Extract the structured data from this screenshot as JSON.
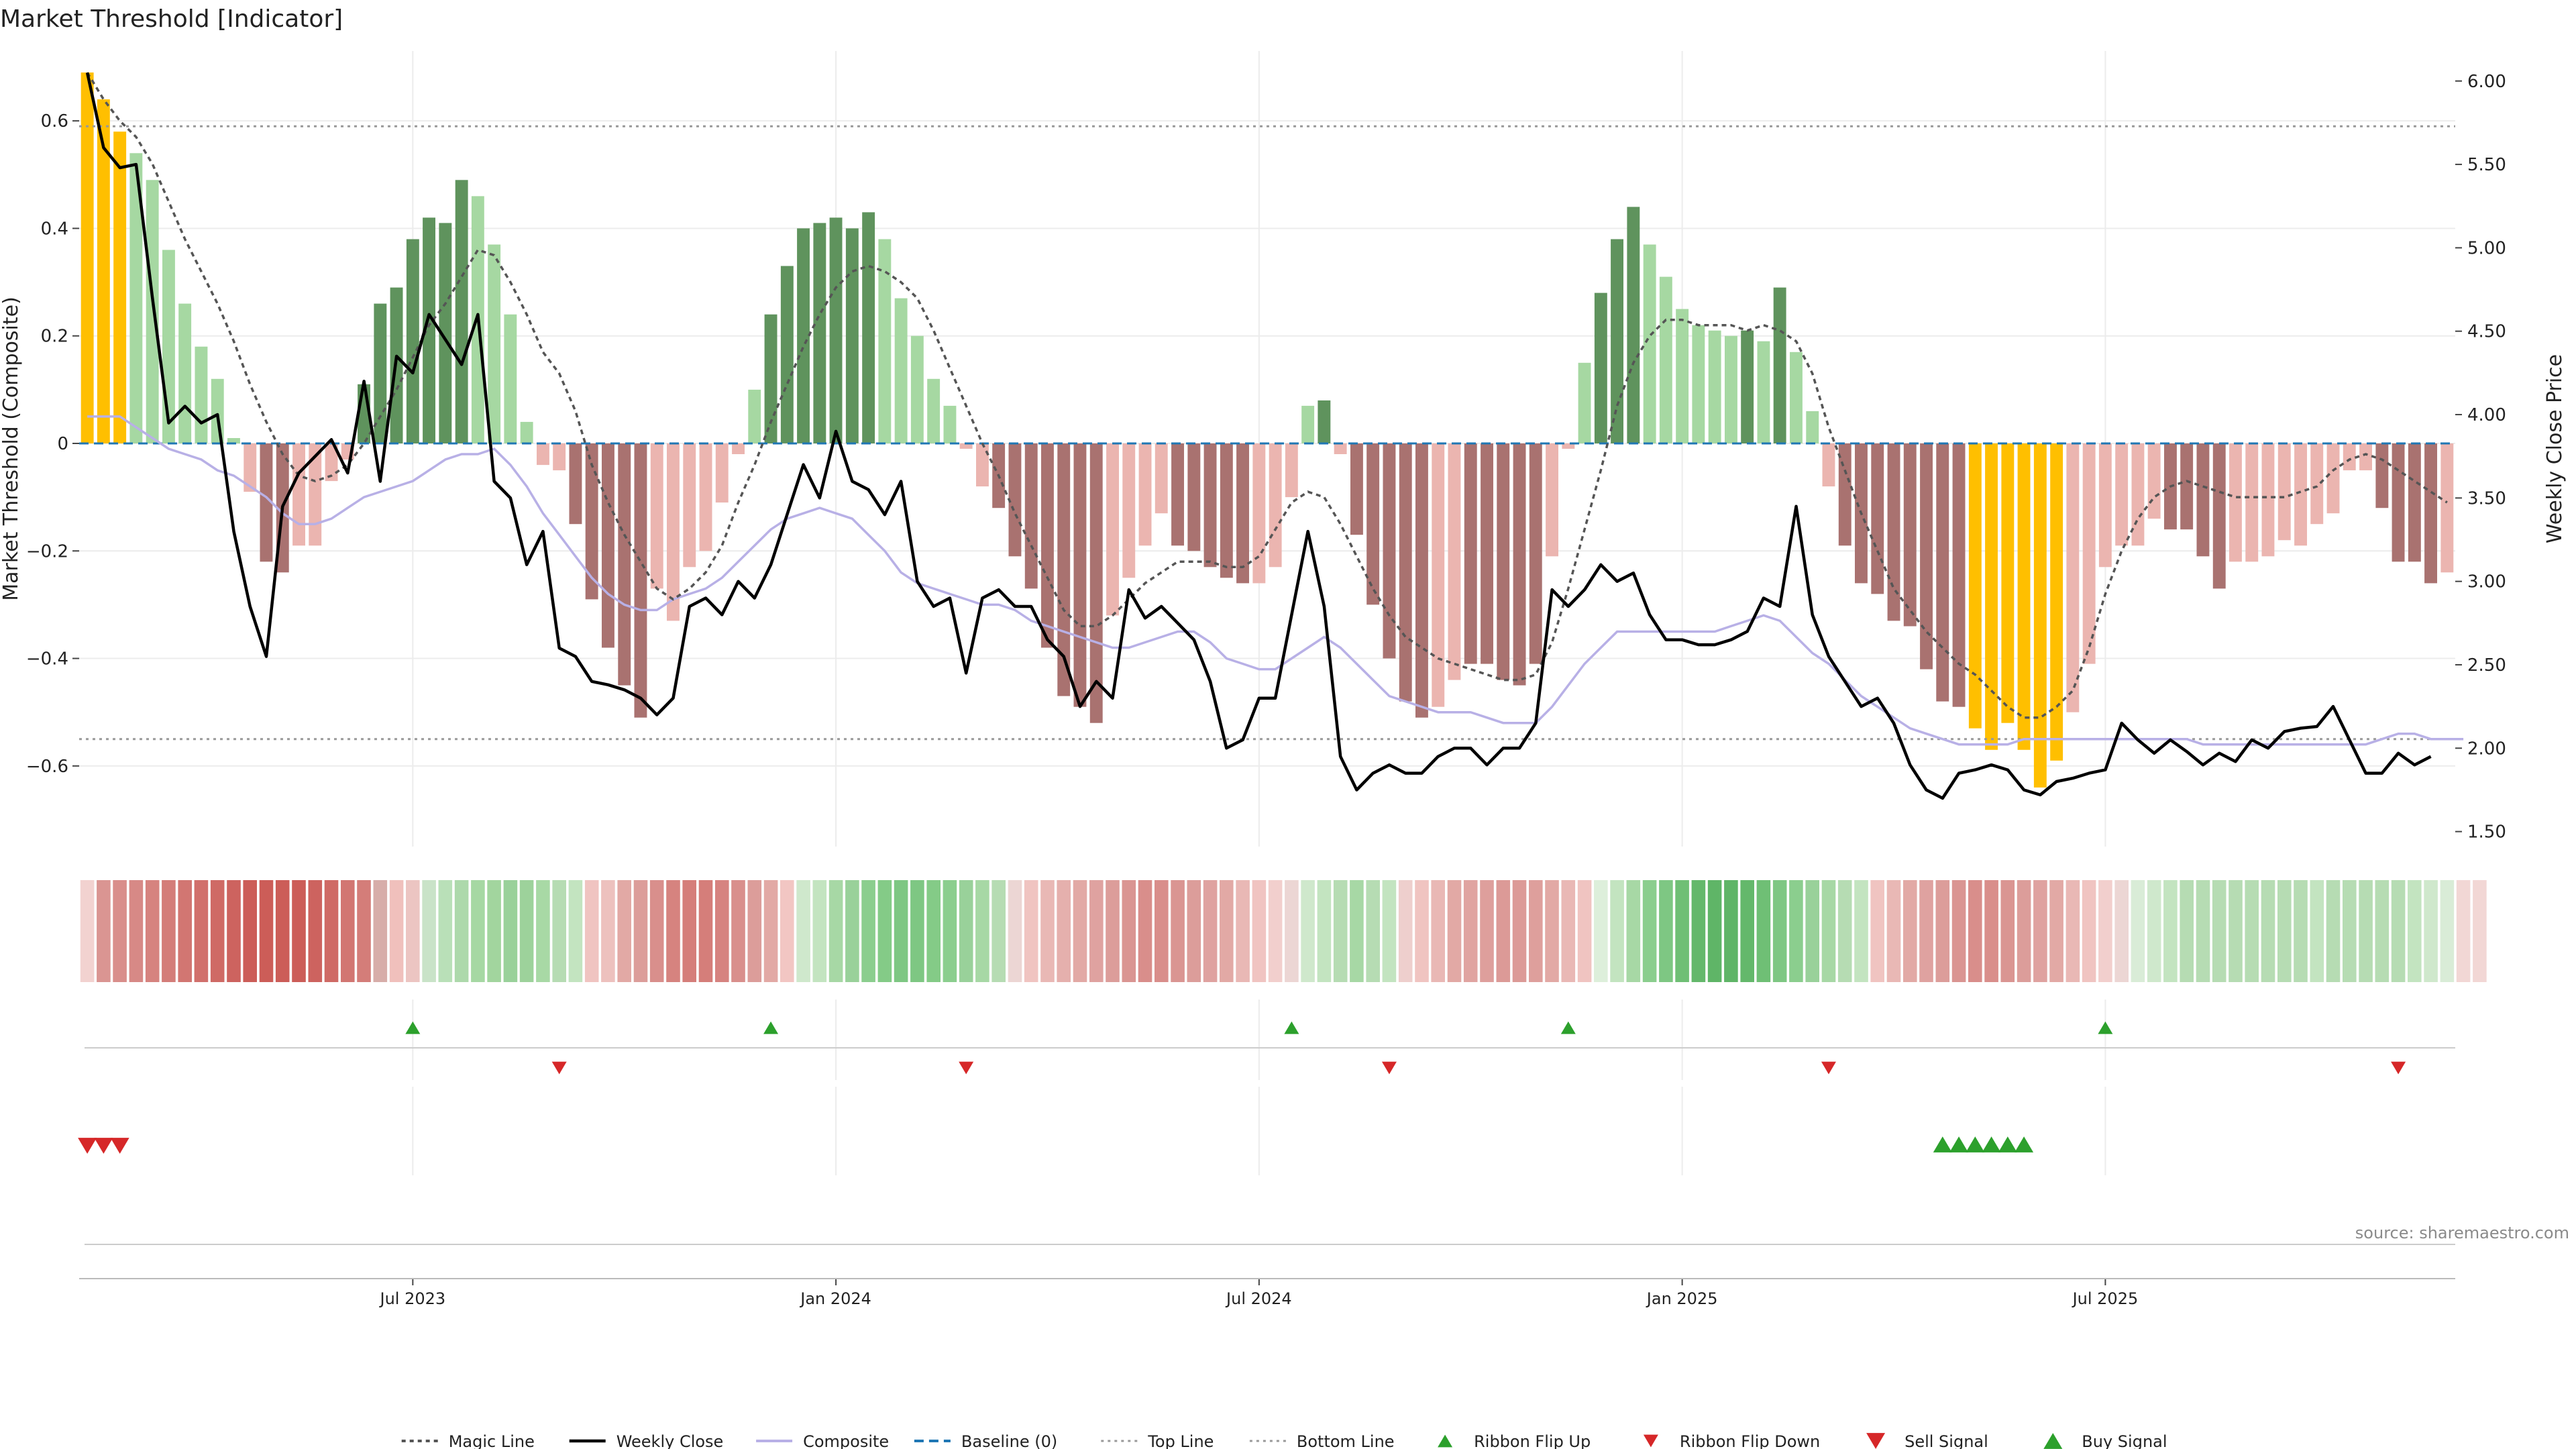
{
  "chart_data": {
    "type": "bar",
    "title": "Market Threshold [Indicator]",
    "ylabel_left": "Market Threshold (Composite)",
    "ylabel_right": "Weekly Close Price",
    "source": "source: sharemaestro.com",
    "ylim_left": [
      -0.75,
      0.73
    ],
    "ylim_right": [
      1.41,
      6.18
    ],
    "yticks_left": [
      {
        "v": 0.6,
        "label": "0.6"
      },
      {
        "v": 0.4,
        "label": "0.4"
      },
      {
        "v": 0.2,
        "label": "0.2"
      },
      {
        "v": 0,
        "label": "0"
      },
      {
        "v": -0.2,
        "label": "−0.2"
      },
      {
        "v": -0.4,
        "label": "−0.4"
      },
      {
        "v": -0.6,
        "label": "−0.6"
      }
    ],
    "yticks_right": [
      "6.00",
      "5.50",
      "5.00",
      "4.50",
      "4.00",
      "3.50",
      "3.00",
      "2.50",
      "2.00",
      "1.50"
    ],
    "xticks": [
      {
        "i": 20,
        "label": "Jul 2023"
      },
      {
        "i": 46,
        "label": "Jan 2024"
      },
      {
        "i": 72,
        "label": "Jul 2024"
      },
      {
        "i": 98,
        "label": "Jan 2025"
      },
      {
        "i": 124,
        "label": "Jul 2025"
      }
    ],
    "top_line": 0.59,
    "bottom_line": -0.55,
    "composite": [
      0.69,
      0.64,
      0.58,
      0.54,
      0.49,
      0.36,
      0.26,
      0.18,
      0.12,
      0.01,
      -0.09,
      -0.22,
      -0.24,
      -0.19,
      -0.19,
      -0.07,
      -0.03,
      0.11,
      0.26,
      0.29,
      0.38,
      0.42,
      0.41,
      0.49,
      0.46,
      0.37,
      0.24,
      0.04,
      -0.04,
      -0.05,
      -0.15,
      -0.29,
      -0.38,
      -0.45,
      -0.51,
      -0.27,
      -0.33,
      -0.23,
      -0.2,
      -0.11,
      -0.02,
      0.1,
      0.24,
      0.33,
      0.4,
      0.41,
      0.42,
      0.4,
      0.43,
      0.38,
      0.27,
      0.2,
      0.12,
      0.07,
      -0.01,
      -0.08,
      -0.12,
      -0.21,
      -0.27,
      -0.38,
      -0.47,
      -0.49,
      -0.52,
      -0.32,
      -0.25,
      -0.19,
      -0.13,
      -0.19,
      -0.2,
      -0.23,
      -0.25,
      -0.26,
      -0.26,
      -0.23,
      -0.1,
      0.07,
      0.08,
      -0.02,
      -0.17,
      -0.3,
      -0.4,
      -0.48,
      -0.51,
      -0.49,
      -0.44,
      -0.41,
      -0.41,
      -0.44,
      -0.45,
      -0.41,
      -0.21,
      -0.01,
      0.15,
      0.28,
      0.38,
      0.44,
      0.37,
      0.31,
      0.25,
      0.22,
      0.21,
      0.2,
      0.21,
      0.19,
      0.29,
      0.17,
      0.06,
      -0.08,
      -0.19,
      -0.26,
      -0.28,
      -0.33,
      -0.34,
      -0.42,
      -0.48,
      -0.49,
      -0.53,
      -0.57,
      -0.52,
      -0.57,
      -0.64,
      -0.59,
      -0.5,
      -0.41,
      -0.23,
      -0.19,
      -0.19,
      -0.14,
      -0.16,
      -0.16,
      -0.21,
      -0.27,
      -0.22,
      -0.22,
      -0.21,
      -0.18,
      -0.19,
      -0.15,
      -0.13,
      -0.05,
      -0.05,
      -0.12,
      -0.22,
      -0.22,
      -0.26,
      -0.24
    ],
    "bar_colors": [
      "#ffbf00",
      "#ffbf00",
      "#ffbf00",
      "#a6d8a2",
      "#a6d8a2",
      "#a6d8a2",
      "#a6d8a2",
      "#a6d8a2",
      "#a6d8a2",
      "#a6d8a2",
      "#ebb5b0",
      "#a97270",
      "#a97270",
      "#ebb5b0",
      "#ebb5b0",
      "#ebb5b0",
      "#ebb5b0",
      "#5f935d",
      "#5f935d",
      "#5f935d",
      "#5f935d",
      "#5f935d",
      "#5f935d",
      "#5f935d",
      "#a6d8a2",
      "#a6d8a2",
      "#a6d8a2",
      "#a6d8a2",
      "#ebb5b0",
      "#ebb5b0",
      "#a97270",
      "#a97270",
      "#a97270",
      "#a97270",
      "#a97270",
      "#ebb5b0",
      "#ebb5b0",
      "#ebb5b0",
      "#ebb5b0",
      "#ebb5b0",
      "#ebb5b0",
      "#a6d8a2",
      "#5f935d",
      "#5f935d",
      "#5f935d",
      "#5f935d",
      "#5f935d",
      "#5f935d",
      "#5f935d",
      "#a6d8a2",
      "#a6d8a2",
      "#a6d8a2",
      "#a6d8a2",
      "#a6d8a2",
      "#ebb5b0",
      "#ebb5b0",
      "#a97270",
      "#a97270",
      "#a97270",
      "#a97270",
      "#a97270",
      "#a97270",
      "#a97270",
      "#ebb5b0",
      "#ebb5b0",
      "#ebb5b0",
      "#ebb5b0",
      "#a97270",
      "#a97270",
      "#a97270",
      "#a97270",
      "#a97270",
      "#ebb5b0",
      "#ebb5b0",
      "#ebb5b0",
      "#a6d8a2",
      "#5f935d",
      "#ebb5b0",
      "#a97270",
      "#a97270",
      "#a97270",
      "#a97270",
      "#a97270",
      "#ebb5b0",
      "#ebb5b0",
      "#a97270",
      "#a97270",
      "#a97270",
      "#a97270",
      "#a97270",
      "#ebb5b0",
      "#ebb5b0",
      "#a6d8a2",
      "#5f935d",
      "#5f935d",
      "#5f935d",
      "#a6d8a2",
      "#a6d8a2",
      "#a6d8a2",
      "#a6d8a2",
      "#a6d8a2",
      "#a6d8a2",
      "#5f935d",
      "#a6d8a2",
      "#5f935d",
      "#a6d8a2",
      "#a6d8a2",
      "#ebb5b0",
      "#a97270",
      "#a97270",
      "#a97270",
      "#a97270",
      "#a97270",
      "#a97270",
      "#a97270",
      "#a97270",
      "#ffbf00",
      "#ffbf00",
      "#ffbf00",
      "#ffbf00",
      "#ffbf00",
      "#ffbf00",
      "#ebb5b0",
      "#ebb5b0",
      "#ebb5b0",
      "#ebb5b0",
      "#ebb5b0",
      "#ebb5b0",
      "#a97270",
      "#a97270",
      "#a97270",
      "#a97270",
      "#ebb5b0",
      "#ebb5b0",
      "#ebb5b0",
      "#ebb5b0",
      "#ebb5b0",
      "#ebb5b0",
      "#ebb5b0",
      "#ebb5b0",
      "#ebb5b0",
      "#a97270",
      "#a97270",
      "#a97270",
      "#a97270",
      "#ebb5b0"
    ],
    "magic_line": [
      0.69,
      0.64,
      0.6,
      0.57,
      0.52,
      0.45,
      0.38,
      0.32,
      0.26,
      0.19,
      0.11,
      0.04,
      -0.02,
      -0.06,
      -0.07,
      -0.06,
      -0.04,
      0.0,
      0.05,
      0.1,
      0.16,
      0.22,
      0.26,
      0.31,
      0.36,
      0.35,
      0.3,
      0.24,
      0.17,
      0.13,
      0.06,
      -0.04,
      -0.11,
      -0.17,
      -0.22,
      -0.27,
      -0.29,
      -0.27,
      -0.24,
      -0.19,
      -0.11,
      -0.04,
      0.04,
      0.11,
      0.18,
      0.24,
      0.29,
      0.32,
      0.33,
      0.32,
      0.3,
      0.27,
      0.21,
      0.14,
      0.07,
      0.0,
      -0.06,
      -0.13,
      -0.19,
      -0.25,
      -0.31,
      -0.34,
      -0.34,
      -0.32,
      -0.29,
      -0.26,
      -0.24,
      -0.22,
      -0.22,
      -0.22,
      -0.23,
      -0.23,
      -0.21,
      -0.16,
      -0.11,
      -0.09,
      -0.1,
      -0.15,
      -0.21,
      -0.27,
      -0.32,
      -0.36,
      -0.38,
      -0.4,
      -0.41,
      -0.42,
      -0.43,
      -0.44,
      -0.44,
      -0.43,
      -0.37,
      -0.27,
      -0.16,
      -0.05,
      0.07,
      0.15,
      0.2,
      0.23,
      0.23,
      0.22,
      0.22,
      0.22,
      0.21,
      0.22,
      0.21,
      0.19,
      0.13,
      0.03,
      -0.05,
      -0.13,
      -0.2,
      -0.27,
      -0.31,
      -0.35,
      -0.38,
      -0.41,
      -0.43,
      -0.46,
      -0.49,
      -0.51,
      -0.51,
      -0.49,
      -0.46,
      -0.38,
      -0.28,
      -0.2,
      -0.14,
      -0.1,
      -0.08,
      -0.07,
      -0.08,
      -0.09,
      -0.1,
      -0.1,
      -0.1,
      -0.1,
      -0.09,
      -0.08,
      -0.05,
      -0.03,
      -0.02,
      -0.03,
      -0.05,
      -0.07,
      -0.09,
      -0.11
    ],
    "composite_smooth": [
      0.05,
      0.05,
      0.05,
      0.03,
      0.01,
      -0.01,
      -0.02,
      -0.03,
      -0.05,
      -0.06,
      -0.08,
      -0.1,
      -0.13,
      -0.15,
      -0.15,
      -0.14,
      -0.12,
      -0.1,
      -0.09,
      -0.08,
      -0.07,
      -0.05,
      -0.03,
      -0.02,
      -0.02,
      -0.01,
      -0.04,
      -0.08,
      -0.13,
      -0.17,
      -0.21,
      -0.25,
      -0.28,
      -0.3,
      -0.31,
      -0.31,
      -0.29,
      -0.28,
      -0.27,
      -0.25,
      -0.22,
      -0.19,
      -0.16,
      -0.14,
      -0.13,
      -0.12,
      -0.13,
      -0.14,
      -0.17,
      -0.2,
      -0.24,
      -0.26,
      -0.27,
      -0.28,
      -0.29,
      -0.3,
      -0.3,
      -0.31,
      -0.33,
      -0.34,
      -0.35,
      -0.36,
      -0.37,
      -0.38,
      -0.38,
      -0.37,
      -0.36,
      -0.35,
      -0.35,
      -0.37,
      -0.4,
      -0.41,
      -0.42,
      -0.42,
      -0.4,
      -0.38,
      -0.36,
      -0.38,
      -0.41,
      -0.44,
      -0.47,
      -0.48,
      -0.49,
      -0.5,
      -0.5,
      -0.5,
      -0.51,
      -0.52,
      -0.52,
      -0.52,
      -0.49,
      -0.45,
      -0.41,
      -0.38,
      -0.35,
      -0.35,
      -0.35,
      -0.35,
      -0.35,
      -0.35,
      -0.35,
      -0.34,
      -0.33,
      -0.32,
      -0.33,
      -0.36,
      -0.39,
      -0.41,
      -0.44,
      -0.47,
      -0.49,
      -0.51,
      -0.53,
      -0.54,
      -0.55,
      -0.56,
      -0.56,
      -0.56,
      -0.56,
      -0.55,
      -0.55,
      -0.55,
      -0.55,
      -0.55,
      -0.55,
      -0.55,
      -0.55,
      -0.55,
      -0.55,
      -0.55,
      -0.56,
      -0.56,
      -0.56,
      -0.56,
      -0.56,
      -0.56,
      -0.56,
      -0.56,
      -0.56,
      -0.56,
      -0.56,
      -0.55,
      -0.54,
      -0.54,
      -0.55,
      -0.55,
      -0.55
    ],
    "weekly_close": [
      6.05,
      5.6,
      5.48,
      5.5,
      4.7,
      3.95,
      4.05,
      3.95,
      4.0,
      3.3,
      2.85,
      2.55,
      3.45,
      3.65,
      3.75,
      3.85,
      3.65,
      4.2,
      3.6,
      4.35,
      4.25,
      4.6,
      4.45,
      4.3,
      4.6,
      3.6,
      3.5,
      3.1,
      3.3,
      2.6,
      2.55,
      2.4,
      2.38,
      2.35,
      2.3,
      2.2,
      2.3,
      2.85,
      2.9,
      2.8,
      3.0,
      2.9,
      3.1,
      3.4,
      3.7,
      3.5,
      3.9,
      3.6,
      3.55,
      3.4,
      3.6,
      3.0,
      2.85,
      2.9,
      2.45,
      2.9,
      2.95,
      2.85,
      2.85,
      2.65,
      2.55,
      2.25,
      2.4,
      2.3,
      2.95,
      2.78,
      2.85,
      2.75,
      2.65,
      2.4,
      2.0,
      2.05,
      2.3,
      2.3,
      2.8,
      3.3,
      2.85,
      1.95,
      1.75,
      1.85,
      1.9,
      1.85,
      1.85,
      1.95,
      2.0,
      2.0,
      1.9,
      2.0,
      2.0,
      2.15,
      2.95,
      2.85,
      2.95,
      3.1,
      3.0,
      3.05,
      2.8,
      2.65,
      2.65,
      2.62,
      2.62,
      2.65,
      2.7,
      2.9,
      2.85,
      3.45,
      2.8,
      2.55,
      2.4,
      2.25,
      2.3,
      2.15,
      1.9,
      1.75,
      1.7,
      1.85,
      1.87,
      1.9,
      1.87,
      1.75,
      1.72,
      1.8,
      1.82,
      1.85,
      1.87,
      2.15,
      2.05,
      1.97,
      2.05,
      1.98,
      1.9,
      1.97,
      1.92,
      2.05,
      2.0,
      2.1,
      2.12,
      2.13,
      2.25,
      2.05,
      1.85,
      1.85,
      1.97,
      1.9,
      1.95
    ],
    "ribbon_colors": [
      "#f2d2d0",
      "#da9592",
      "#d98e8b",
      "#d78986",
      "#d6837f",
      "#d47d79",
      "#d27672",
      "#d1706c",
      "#cf6a65",
      "#cd635f",
      "#cc5d58",
      "#cc5d58",
      "#cc5d58",
      "#cc5d58",
      "#cd635f",
      "#cf6a65",
      "#d27672",
      "#d47d79",
      "#d7ada9",
      "#f0c0bc",
      "#ecc5c2",
      "#c9e3c8",
      "#b9e0b8",
      "#add9ab",
      "#a6d8a3",
      "#a2d59e",
      "#99d19a",
      "#9dd29b",
      "#a8d9a5",
      "#b6dcb3",
      "#c3e4c0",
      "#f0c4c1",
      "#edc1be",
      "#e2a9a5",
      "#dc9d9a",
      "#d98f8c",
      "#d6837f",
      "#d57e7a",
      "#d57e7a",
      "#d68380",
      "#d98f8c",
      "#dc9d9a",
      "#e2a9a5",
      "#f2c6c3",
      "#cfe8cc",
      "#c3e4c0",
      "#a7d8a5",
      "#99d19a",
      "#8bce8e",
      "#84cb87",
      "#7ec783",
      "#7ec783",
      "#84cb87",
      "#8bce8e",
      "#99d19a",
      "#a7d8a5",
      "#b6dcb3",
      "#ecd6d4",
      "#f0c4c1",
      "#e9b8b5",
      "#e5b0ad",
      "#e2a9a5",
      "#dfa2a0",
      "#dc9d9a",
      "#da9592",
      "#d98e8b",
      "#d98e8b",
      "#da9592",
      "#dc9d9a",
      "#dfa2a0",
      "#e2a9a5",
      "#e9b8b5",
      "#f0c4c1",
      "#f2cfcd",
      "#ecd6d4",
      "#cfe8cc",
      "#c3e4c0",
      "#b6dcb3",
      "#a7d8a5",
      "#b6dcb3",
      "#c3e4c0",
      "#eecfcd",
      "#f0c4c1",
      "#e9b8b5",
      "#e2a9a5",
      "#e0a4a1",
      "#de9f9c",
      "#dc9a97",
      "#dc9a97",
      "#de9f9c",
      "#e2a9a5",
      "#e9b8b5",
      "#f0c4c1",
      "#ddefdb",
      "#c3e4c0",
      "#a7d8a5",
      "#8bce8e",
      "#7ec783",
      "#6fbf75",
      "#64b86b",
      "#5fb567",
      "#5fb567",
      "#64b86b",
      "#6fbf75",
      "#7ec783",
      "#8bce8e",
      "#99d19a",
      "#a7d8a5",
      "#b6dcb3",
      "#c3e4c0",
      "#f0c4c1",
      "#e9b8b5",
      "#e2a9a5",
      "#dfa2a0",
      "#dc9d9a",
      "#da9592",
      "#d98e8b",
      "#d98e8b",
      "#da9592",
      "#dc9d9a",
      "#dfa2a0",
      "#e2a9a5",
      "#e9b8b5",
      "#f0c4c1",
      "#f2cfcd",
      "#ecd6d4",
      "#d9ecd7",
      "#cfe8cc",
      "#c3e4c0",
      "#b6dcb3",
      "#b6dcb3",
      "#b6dcb3",
      "#b6dcb3",
      "#b6dcb3",
      "#b6dcb3",
      "#b6dcb3",
      "#b6dcb3",
      "#c3e4c0",
      "#b6dcb3",
      "#b6dcb3",
      "#b6dcb3",
      "#b6dcb3",
      "#b6dcb3",
      "#c3e4c0",
      "#cfe8cc",
      "#d9ecd7",
      "#f2d7d5",
      "#f2d7d5"
    ],
    "ribbon_flip_up": [
      20,
      42,
      74,
      91,
      124
    ],
    "ribbon_flip_down": [
      29,
      54,
      80,
      107,
      142
    ],
    "sell_signal": [
      0,
      1,
      2
    ],
    "buy_signal": [
      114,
      115,
      116,
      117,
      118,
      119
    ],
    "legend": [
      "Magic Line",
      "Weekly Close",
      "Composite",
      "Baseline (0)",
      "Top Line",
      "Bottom Line",
      "Ribbon Flip Up",
      "Ribbon Flip Down",
      "Sell Signal",
      "Buy Signal"
    ],
    "legend_placement": "bottom-center",
    "grid": true
  },
  "colors": {
    "magic_line": "#555555",
    "weekly_close": "#000000",
    "composite": "#b8b0e6",
    "baseline": "#1f77b4",
    "top_line": "#999999",
    "bottom_line": "#999999",
    "flip_up": "#2ca02c",
    "flip_down": "#d62728",
    "sell": "#d62728",
    "buy": "#2ca02c",
    "grid": "#ececec",
    "text": "#222222"
  }
}
